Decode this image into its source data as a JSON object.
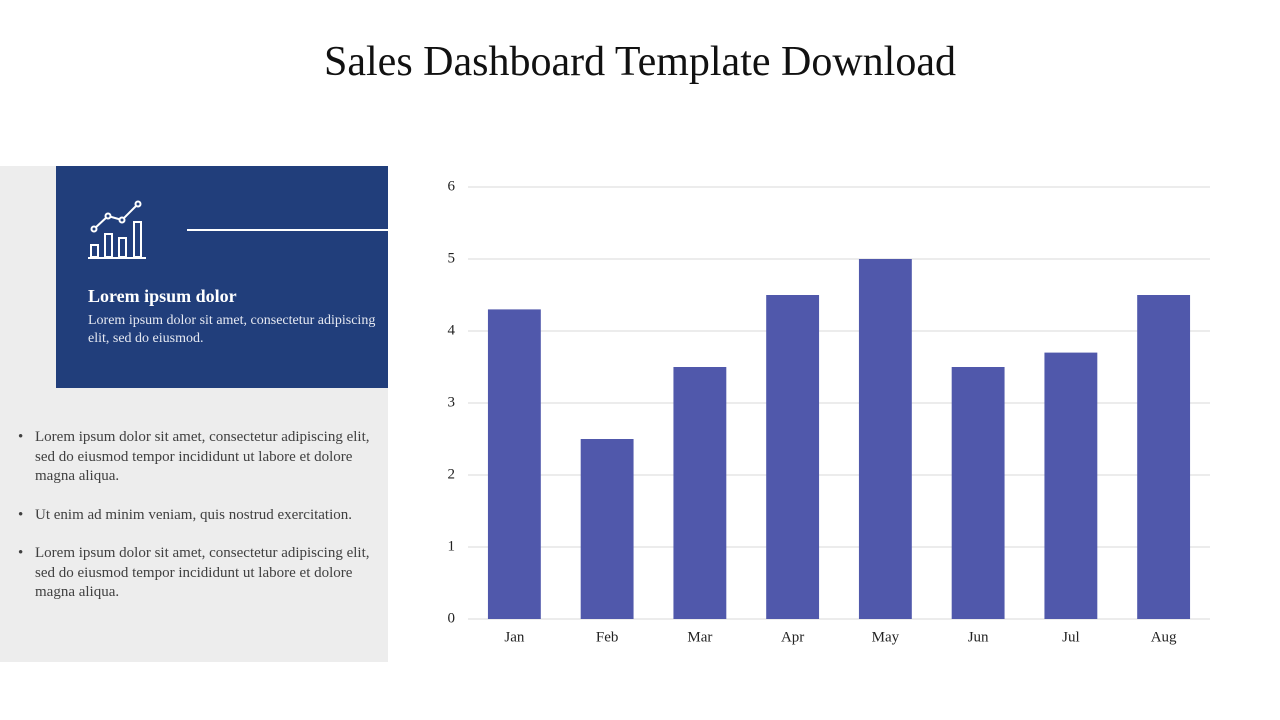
{
  "title": "Sales Dashboard Template Download",
  "card": {
    "heading": "Lorem ipsum dolor",
    "text": "Lorem ipsum dolor sit amet, consectetur adipiscing elit, sed do eiusmod."
  },
  "bullets": [
    "Lorem ipsum dolor sit amet, consectetur adipiscing elit, sed do eiusmod tempor incididunt ut labore et dolore magna aliqua.",
    "Ut enim ad minim veniam, quis nostrud exercitation.",
    "Lorem ipsum dolor sit amet, consectetur adipiscing elit, sed do eiusmod tempor incididunt ut labore et dolore magna aliqua."
  ],
  "chart_data": {
    "type": "bar",
    "categories": [
      "Jan",
      "Feb",
      "Mar",
      "Apr",
      "May",
      "Jun",
      "Jul",
      "Aug"
    ],
    "values": [
      4.3,
      2.5,
      3.5,
      4.5,
      5,
      3.5,
      3.7,
      4.5
    ],
    "color": "#5058ab",
    "ylim": [
      0,
      6
    ],
    "yticks": [
      0,
      1,
      2,
      3,
      4,
      5,
      6
    ],
    "grid": true
  }
}
